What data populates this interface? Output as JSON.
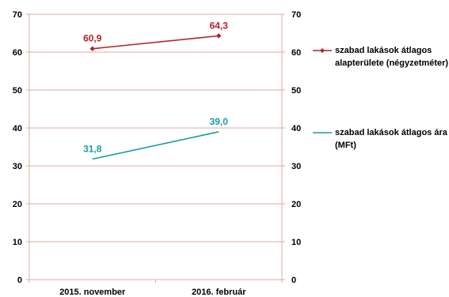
{
  "chart_data": {
    "type": "line",
    "categories": [
      "2015. november",
      "2016. február"
    ],
    "series": [
      {
        "name": "szabad lakások átlagos alapterülete (négyzetméter)",
        "values": [
          60.9,
          64.3
        ],
        "labels": [
          "60,9",
          "64,3"
        ],
        "color": "#b3222a",
        "marker": "diamond"
      },
      {
        "name": "szabad lakások átlagos ára (MFt)",
        "values": [
          31.8,
          39.0
        ],
        "labels": [
          "31,8",
          "39,0"
        ],
        "color": "#1a9ba6",
        "marker": "none"
      }
    ],
    "ylim": [
      0,
      70
    ],
    "yticks": [
      0,
      10,
      20,
      30,
      40,
      50,
      60,
      70
    ],
    "secondary_ylim": [
      0,
      70
    ],
    "grid": true,
    "gridline_color": "#e0a8a0",
    "legend_position": "right"
  }
}
